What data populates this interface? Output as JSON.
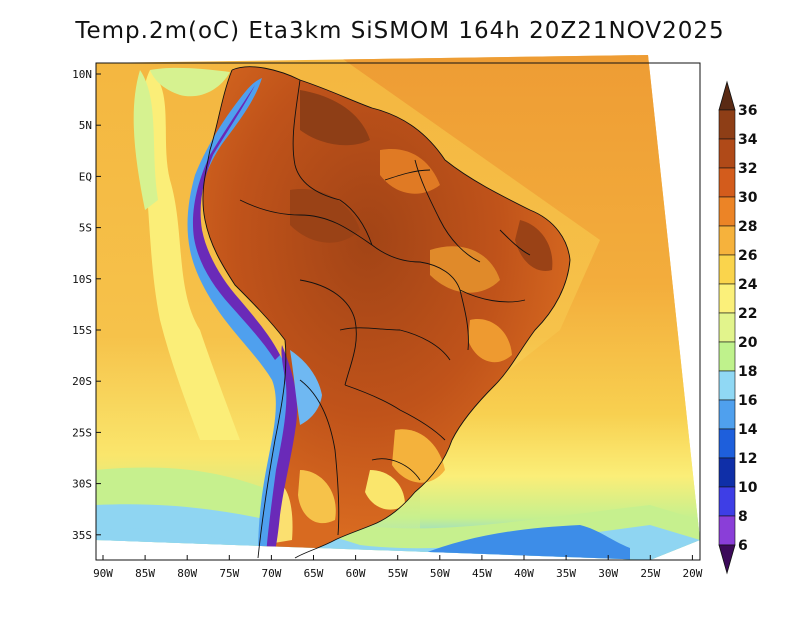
{
  "title": "Temp.2m(oC) Eta3km SiSMOM 164h 20Z21NOV2025",
  "lat_labels": [
    "10N",
    "5N",
    "EQ",
    "5S",
    "10S",
    "15S",
    "20S",
    "25S",
    "30S",
    "35S"
  ],
  "lon_labels": [
    "90W",
    "85W",
    "80W",
    "75W",
    "70W",
    "65W",
    "60W",
    "55W",
    "50W",
    "45W",
    "40W",
    "35W",
    "30W",
    "25W",
    "20W"
  ],
  "colorbar": {
    "levels": [
      "36",
      "34",
      "32",
      "30",
      "28",
      "26",
      "24",
      "22",
      "20",
      "18",
      "16",
      "14",
      "12",
      "10",
      "8",
      "6"
    ],
    "top_color": "#5a2a14",
    "bottom_color": "#3c0a5a",
    "colors": [
      "#6e3214",
      "#8e3e16",
      "#b04a18",
      "#d35c1c",
      "#ec8426",
      "#f6b23c",
      "#fad44c",
      "#fbf07a",
      "#e2f48c",
      "#bff28c",
      "#90d8f4",
      "#4fa0ee",
      "#1e5fdc",
      "#0f2fa8",
      "#3e3ee6",
      "#8a3ed8",
      "#6a14a4"
    ]
  },
  "colors": {
    "ocean_north": "#f2a93c",
    "ocean_mid": "#f6c34a",
    "ocean_south1": "#faec72",
    "ocean_south2": "#c6f08e",
    "ocean_south3": "#8fd5f2",
    "ocean_south4": "#3d8de8",
    "land_hot": "#b04a18",
    "land_warm": "#d86a20",
    "andes_cold": "#6a2ab8"
  }
}
